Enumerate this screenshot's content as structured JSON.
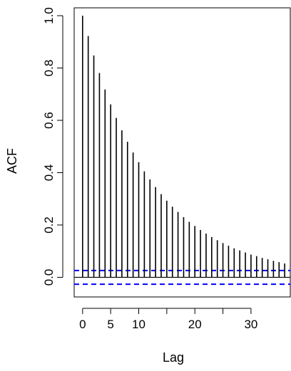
{
  "chart_data": {
    "type": "bar",
    "xlabel": "Lag",
    "ylabel": "ACF",
    "xlim": [
      -1.5,
      37
    ],
    "ylim": [
      -0.075,
      1.03
    ],
    "x_ticks": [
      0,
      5,
      10,
      20,
      30
    ],
    "y_ticks": [
      0.0,
      0.2,
      0.4,
      0.6,
      0.8,
      1.0
    ],
    "y_tick_labels": [
      "0.0",
      "0.2",
      "0.4",
      "0.6",
      "0.8",
      "1.0"
    ],
    "x": [
      0,
      1,
      2,
      3,
      4,
      5,
      6,
      7,
      8,
      9,
      10,
      11,
      12,
      13,
      14,
      15,
      16,
      17,
      18,
      19,
      20,
      21,
      22,
      23,
      24,
      25,
      26,
      27,
      28,
      29,
      30,
      31,
      32,
      33,
      34,
      35,
      36
    ],
    "values": [
      1.0,
      0.922,
      0.848,
      0.781,
      0.718,
      0.661,
      0.609,
      0.562,
      0.518,
      0.477,
      0.44,
      0.405,
      0.374,
      0.345,
      0.318,
      0.293,
      0.27,
      0.25,
      0.23,
      0.212,
      0.196,
      0.181,
      0.167,
      0.154,
      0.142,
      0.131,
      0.121,
      0.111,
      0.103,
      0.095,
      0.087,
      0.081,
      0.074,
      0.069,
      0.063,
      0.058,
      0.053
    ],
    "confidence_bound": 0.0262,
    "colors": {
      "spikes": "#000000",
      "bounds": "#0000ff"
    },
    "grid": false
  }
}
